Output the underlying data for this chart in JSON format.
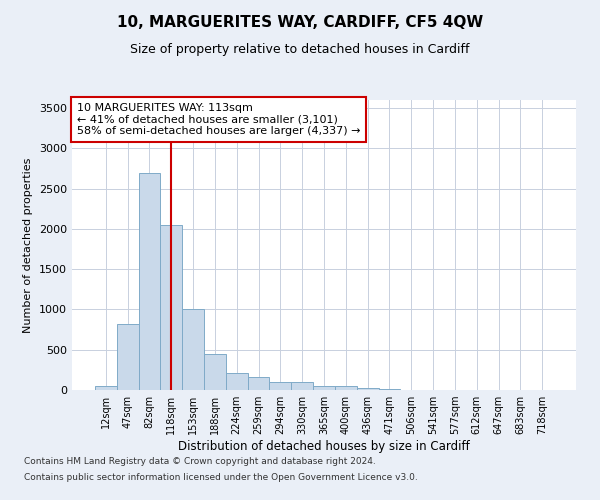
{
  "title": "10, MARGUERITES WAY, CARDIFF, CF5 4QW",
  "subtitle": "Size of property relative to detached houses in Cardiff",
  "xlabel": "Distribution of detached houses by size in Cardiff",
  "ylabel": "Number of detached properties",
  "categories": [
    "12sqm",
    "47sqm",
    "82sqm",
    "118sqm",
    "153sqm",
    "188sqm",
    "224sqm",
    "259sqm",
    "294sqm",
    "330sqm",
    "365sqm",
    "400sqm",
    "436sqm",
    "471sqm",
    "506sqm",
    "541sqm",
    "577sqm",
    "612sqm",
    "647sqm",
    "683sqm",
    "718sqm"
  ],
  "bar_values": [
    55,
    820,
    2700,
    2050,
    1000,
    450,
    210,
    160,
    100,
    100,
    50,
    45,
    25,
    12,
    5,
    3,
    2,
    1,
    1,
    1,
    1
  ],
  "bar_color": "#c9d9ea",
  "bar_edge_color": "#7faac8",
  "vline_x": 3.0,
  "vline_color": "#cc0000",
  "box_text_line1": "10 MARGUERITES WAY: 113sqm",
  "box_text_line2": "← 41% of detached houses are smaller (3,101)",
  "box_text_line3": "58% of semi-detached houses are larger (4,337) →",
  "box_color": "#cc0000",
  "box_fill": "#ffffff",
  "ylim": [
    0,
    3600
  ],
  "yticks": [
    0,
    500,
    1000,
    1500,
    2000,
    2500,
    3000,
    3500
  ],
  "footnote1": "Contains HM Land Registry data © Crown copyright and database right 2024.",
  "footnote2": "Contains public sector information licensed under the Open Government Licence v3.0.",
  "bg_color": "#eaeff7",
  "plot_bg_color": "#ffffff",
  "grid_color": "#c8d0de",
  "title_fontsize": 11,
  "subtitle_fontsize": 9,
  "annotation_fontsize": 8
}
